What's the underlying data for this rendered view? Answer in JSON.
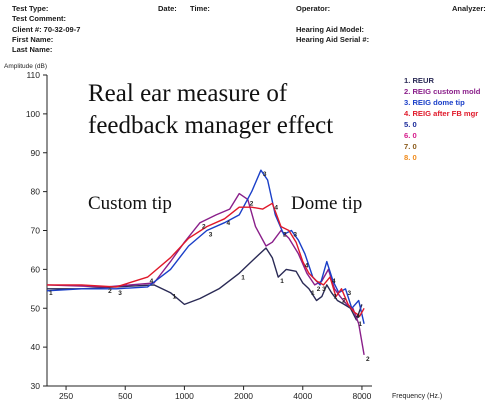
{
  "header": {
    "test_type": "Test Type:",
    "date": "Date:",
    "time": "Time:",
    "operator": "Operator:",
    "analyzer": "Analyzer:",
    "test_comment": "Test Comment:",
    "client": "Client #: 70-32-09-7",
    "hearing_aid_model": "Hearing Aid Model:",
    "first_name": "First Name:",
    "hearing_aid_serial": "Hearing Aid Serial #:",
    "last_name": "Last Name:"
  },
  "annotations": {
    "main": [
      "Real ear measure of",
      "feedback manager effect"
    ],
    "custom_tip": "Custom tip",
    "dome_tip": "Dome tip"
  },
  "legend": [
    {
      "label": "1. REUR",
      "color": "#2a2a55"
    },
    {
      "label": "2. REIG custom mold",
      "color": "#8a1f8a"
    },
    {
      "label": "3. REIG dome tip",
      "color": "#1a3fc8"
    },
    {
      "label": "4. REIG after FB mgr",
      "color": "#e0192a"
    },
    {
      "label": "5. 0",
      "color": "#1a2a9a"
    },
    {
      "label": "6. 0",
      "color": "#d5198a"
    },
    {
      "label": "7. 0",
      "color": "#8a5a1a"
    },
    {
      "label": "8. 0",
      "color": "#f08a1a"
    }
  ],
  "chart_data": {
    "type": "line",
    "xlabel": "Frequency (Hz.)",
    "ylabel": "Amplitude (dB)",
    "xscale": "log",
    "xlim": [
      200,
      9000
    ],
    "ylim": [
      30,
      110
    ],
    "x_ticks": [
      250,
      500,
      1000,
      2000,
      4000,
      8000
    ],
    "y_ticks": [
      30,
      40,
      50,
      60,
      70,
      80,
      90,
      100,
      110
    ],
    "series": [
      {
        "name": "1. REUR",
        "marker": "1",
        "color": "#2a2a55",
        "x": [
          200,
          300,
          450,
          700,
          850,
          1000,
          1200,
          1500,
          1900,
          2300,
          2600,
          2800,
          3000,
          3300,
          3700,
          4000,
          4300,
          4700,
          5000,
          5300,
          5600,
          6000,
          6500,
          7000,
          7500,
          8000
        ],
        "y": [
          55,
          55,
          55.5,
          56,
          54,
          51,
          52.5,
          55,
          59,
          63,
          65.5,
          63,
          58,
          60,
          59.5,
          56.5,
          55,
          52,
          53,
          56,
          54,
          52,
          51,
          50,
          47,
          51
        ]
      },
      {
        "name": "2. REIG custom mold",
        "marker": "2",
        "color": "#8a1f8a",
        "x": [
          200,
          400,
          700,
          850,
          1000,
          1200,
          1450,
          1700,
          1900,
          2100,
          2300,
          2600,
          2800,
          3100,
          3400,
          3800,
          4200,
          4600,
          5000,
          5400,
          5800,
          6200,
          6700,
          7200,
          7700,
          8200
        ],
        "y": [
          56,
          55.5,
          56.5,
          62,
          67,
          72,
          74,
          75.5,
          79.5,
          78,
          71,
          66,
          67,
          70,
          68,
          64,
          59,
          56,
          57,
          60,
          55,
          53,
          51,
          50,
          46,
          38
        ]
      },
      {
        "name": "3. REIG dome tip",
        "marker": "3",
        "color": "#1a3fc8",
        "x": [
          200,
          300,
          450,
          650,
          850,
          1050,
          1300,
          1600,
          1900,
          2200,
          2450,
          2650,
          2900,
          3200,
          3500,
          3800,
          4100,
          4500,
          4900,
          5300,
          5700,
          6100,
          6600,
          7100,
          7700,
          8200
        ],
        "y": [
          54.5,
          55,
          55,
          55.5,
          60,
          66,
          70,
          72,
          74,
          80,
          85.5,
          83,
          74,
          69,
          70,
          67.5,
          64,
          58,
          56,
          62,
          57,
          54,
          55,
          50,
          52,
          46
        ]
      },
      {
        "name": "4. REIG after FB mgr",
        "marker": "4",
        "color": "#e0192a",
        "x": [
          200,
          300,
          450,
          650,
          850,
          1050,
          1300,
          1600,
          1900,
          2200,
          2500,
          2800,
          3100,
          3400,
          3700,
          4000,
          4300,
          4700,
          5100,
          5500,
          5900,
          6300,
          6800,
          7300,
          7800,
          8200
        ],
        "y": [
          56,
          56,
          55.5,
          58,
          63,
          68,
          71,
          73,
          76,
          76,
          75.5,
          77,
          71,
          70,
          67,
          62,
          59,
          57,
          56,
          58,
          53,
          55,
          51,
          49,
          48,
          50
        ]
      }
    ]
  }
}
